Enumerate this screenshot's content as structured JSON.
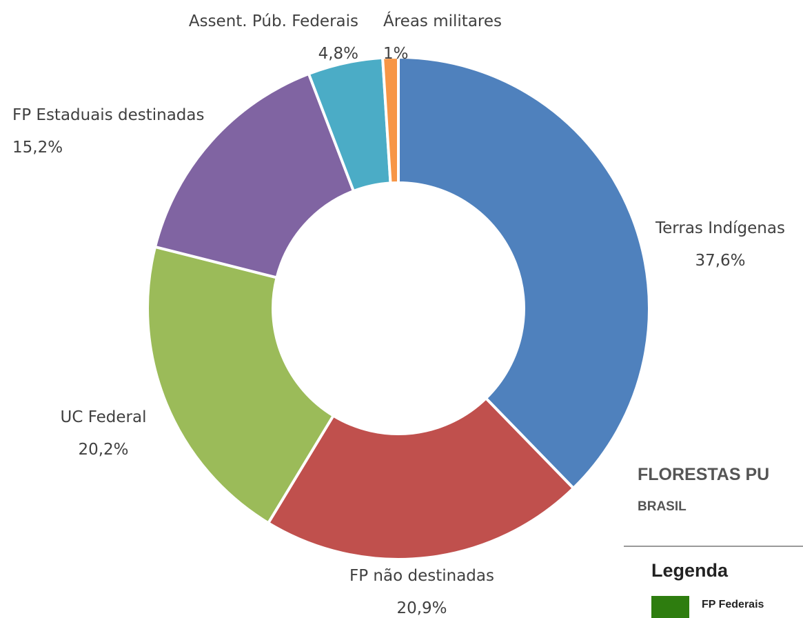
{
  "chart_data": {
    "type": "donut",
    "categories": [
      "Terras Indígenas",
      "FP não destinadas",
      "UC Federal",
      "FP Estaduais destinadas",
      "Assent. Púb. Federais",
      "Áreas militares"
    ],
    "values": [
      37.6,
      20.9,
      20.2,
      15.2,
      4.8,
      1
    ],
    "value_labels": [
      "37,6%",
      "20,9%",
      "20,2%",
      "15,2%",
      "4,8%",
      "1%"
    ],
    "colors": [
      "#4f81bd",
      "#c0504d",
      "#9bbb59",
      "#8064a2",
      "#4bacc6",
      "#f79646"
    ]
  },
  "panel": {
    "title": "FLORESTAS PU",
    "subtitle": "BRASIL",
    "legend_title": "Legenda",
    "legend_items": [
      {
        "label": "FP Federais",
        "color": "#2e7d0f"
      }
    ]
  }
}
